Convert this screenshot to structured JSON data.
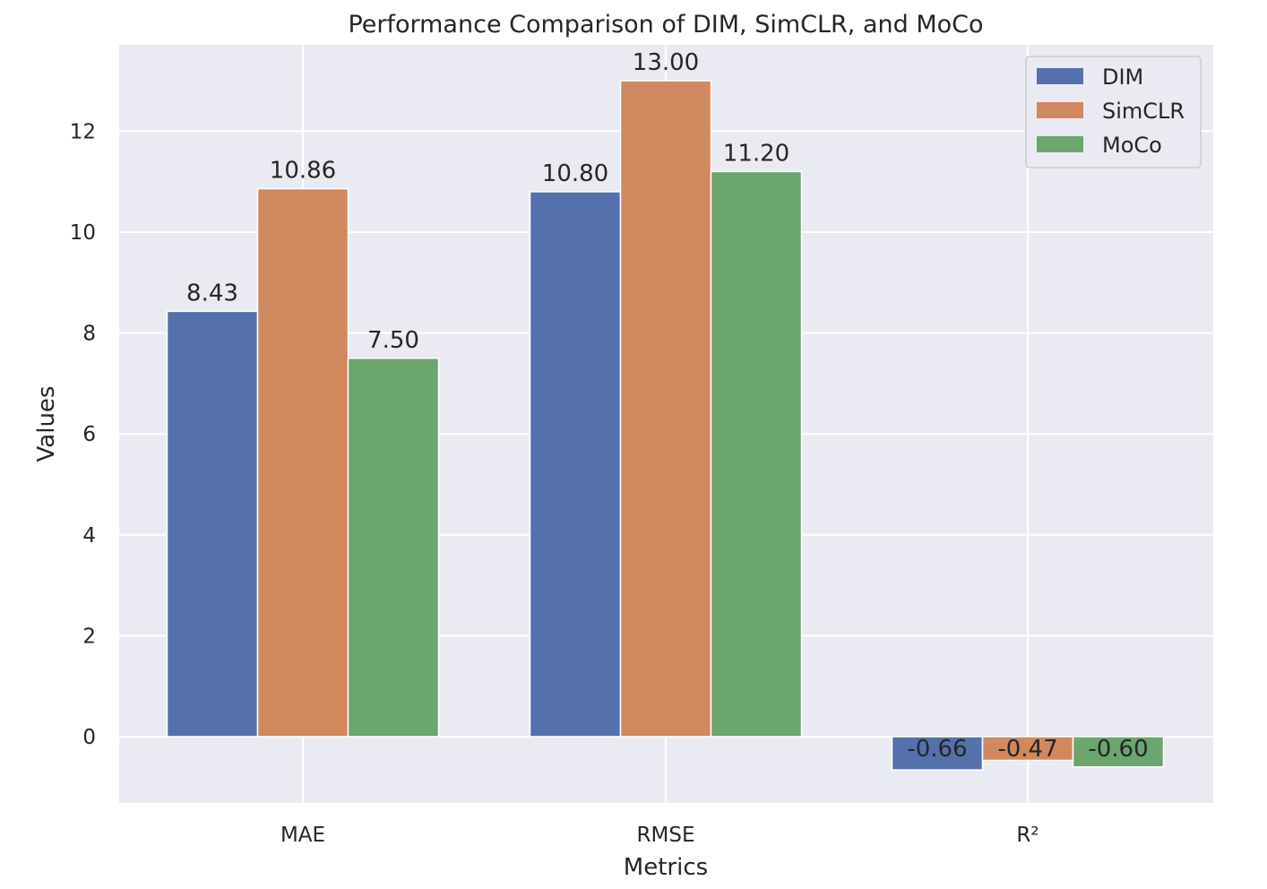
{
  "chart_data": {
    "type": "bar",
    "title": "Performance Comparison of DIM, SimCLR, and MoCo",
    "xlabel": "Metrics",
    "ylabel": "Values",
    "categories": [
      "MAE",
      "RMSE",
      "R²"
    ],
    "series": [
      {
        "name": "DIM",
        "color": "#5471ab",
        "values": [
          8.43,
          10.8,
          -0.66
        ],
        "labels": [
          "8.43",
          "10.80",
          "-0.66"
        ]
      },
      {
        "name": "SimCLR",
        "color": "#d1885c",
        "values": [
          10.86,
          13.0,
          -0.47
        ],
        "labels": [
          "10.86",
          "13.00",
          "-0.47"
        ]
      },
      {
        "name": "MoCo",
        "color": "#6aa66e",
        "values": [
          7.5,
          11.2,
          -0.6
        ],
        "labels": [
          "7.50",
          "11.20",
          "-0.60"
        ]
      }
    ],
    "yticks": [
      0,
      2,
      4,
      6,
      8,
      10,
      12
    ],
    "ylim": [
      -1.3,
      13.65
    ],
    "grid": true,
    "legend_position": "top-right",
    "background_color": "#eaeaf2"
  }
}
